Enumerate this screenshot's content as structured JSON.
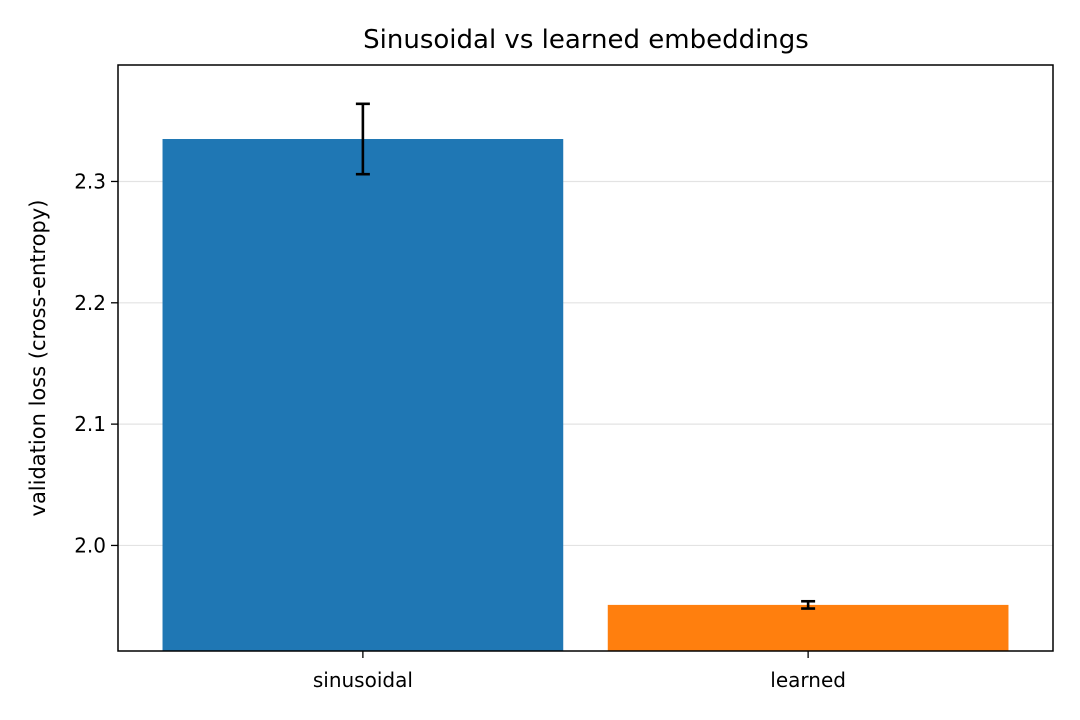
{
  "chart_data": {
    "type": "bar",
    "title": "Sinusoidal vs learned embeddings",
    "xlabel": "",
    "ylabel": "validation loss (cross-entropy)",
    "categories": [
      "sinusoidal",
      "learned"
    ],
    "values": [
      2.335,
      1.951
    ],
    "errors": [
      0.029,
      0.003
    ],
    "colors": [
      "#1f77b4",
      "#ff7f0e"
    ],
    "ylim": [
      1.913,
      2.396
    ],
    "yticks": [
      2.0,
      2.1,
      2.2,
      2.3
    ],
    "ytick_labels": [
      "2.0",
      "2.1",
      "2.2",
      "2.3"
    ],
    "grid": "y",
    "legend": "none"
  }
}
